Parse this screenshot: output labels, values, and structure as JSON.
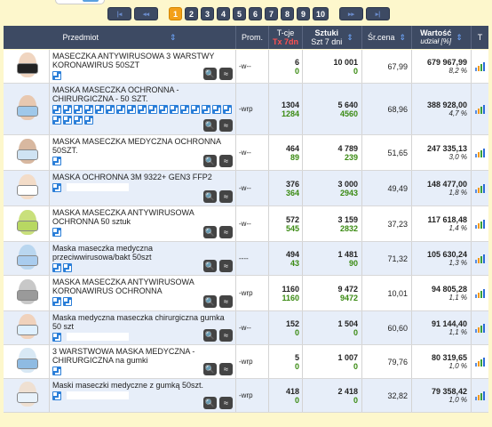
{
  "pager": {
    "first": "|◂",
    "prev": "◂◂",
    "pages": [
      "1",
      "2",
      "3",
      "4",
      "5",
      "6",
      "7",
      "8",
      "9",
      "10"
    ],
    "active": "1",
    "next": "▸▸",
    "last": "▸|"
  },
  "header": {
    "product": "Przedmiot",
    "prom": "Prom.",
    "tcje_top": "T-cje",
    "tcje_bot": "Tx 7dn",
    "szt_top": "Sztuki",
    "szt_bot": "Szt 7 dni",
    "price": "Śr.cena",
    "value_top": "Wartość",
    "value_bot": "udział [%]",
    "trend": "T"
  },
  "tools": {
    "search": "🔍",
    "similar": "≈"
  },
  "colors": {
    "accent": "#f3a019",
    "header": "#3d4a63",
    "green": "#3a8a12"
  },
  "rows": [
    {
      "name": "MASECZKA ANTYWIRUSOWA 3 WARSTWY KORONAWIRUS 50SZT",
      "prom": "-w--",
      "t1": "6",
      "t2": "0",
      "s1": "10 001",
      "s2": "0",
      "price": "67,99",
      "value": "679 967,99",
      "pct": "8,2 %"
    },
    {
      "name": "MASKA MASECZKA OCHRONNA - CHIRURGICZNA - 50 SZT.",
      "prom": "-wrp",
      "t1": "1304",
      "t2": "1284",
      "s1": "5 640",
      "s2": "4560",
      "price": "68,96",
      "value": "388 928,00",
      "pct": "4,7 %"
    },
    {
      "name": "MASKA MASECZKA MEDYCZNA OCHRONNA 50SZT.",
      "prom": "-w--",
      "t1": "464",
      "t2": "89",
      "s1": "4 789",
      "s2": "239",
      "price": "51,65",
      "value": "247 335,13",
      "pct": "3,0 %"
    },
    {
      "name": "MASKA OCHRONNA 3M 9322+ GEN3 FFP2",
      "prom": "-w--",
      "t1": "376",
      "t2": "364",
      "s1": "3 000",
      "s2": "2943",
      "price": "49,49",
      "value": "148 477,00",
      "pct": "1,8 %"
    },
    {
      "name": "MASKA MASECZKA ANTYWIRUSOWA OCHRONNA 50 sztuk",
      "prom": "-w--",
      "t1": "572",
      "t2": "545",
      "s1": "3 159",
      "s2": "2832",
      "price": "37,23",
      "value": "117 618,48",
      "pct": "1,4 %"
    },
    {
      "name": "Maska maseczka medyczna przeciwwirusowa/bakt 50szt",
      "prom": "----",
      "t1": "494",
      "t2": "43",
      "s1": "1 481",
      "s2": "90",
      "price": "71,32",
      "value": "105 630,24",
      "pct": "1,3 %"
    },
    {
      "name": "MASKA MASECZKA ANTYWIRUSOWA KORONAWIRUS OCHRONNA",
      "prom": "-wrp",
      "t1": "1160",
      "t2": "1160",
      "s1": "9 472",
      "s2": "9472",
      "price": "10,01",
      "value": "94 805,28",
      "pct": "1,1 %"
    },
    {
      "name": "Maska medyczna maseczka chirurgiczna gumka 50 szt",
      "prom": "-w--",
      "t1": "152",
      "t2": "0",
      "s1": "1 504",
      "s2": "0",
      "price": "60,60",
      "value": "91 144,40",
      "pct": "1,1 %"
    },
    {
      "name": "3 WARSTWOWA MASKA MEDYCZNA - CHIRURGICZNA na gumki",
      "prom": "-wrp",
      "t1": "5",
      "t2": "0",
      "s1": "1 007",
      "s2": "0",
      "price": "79,76",
      "value": "80 319,65",
      "pct": "1,0 %"
    },
    {
      "name": "Maski maseczki medyczne z gumką 50szt.",
      "prom": "-wrp",
      "t1": "418",
      "t2": "0",
      "s1": "2 418",
      "s2": "0",
      "price": "32,82",
      "value": "79 358,42",
      "pct": "1,0 %"
    }
  ]
}
